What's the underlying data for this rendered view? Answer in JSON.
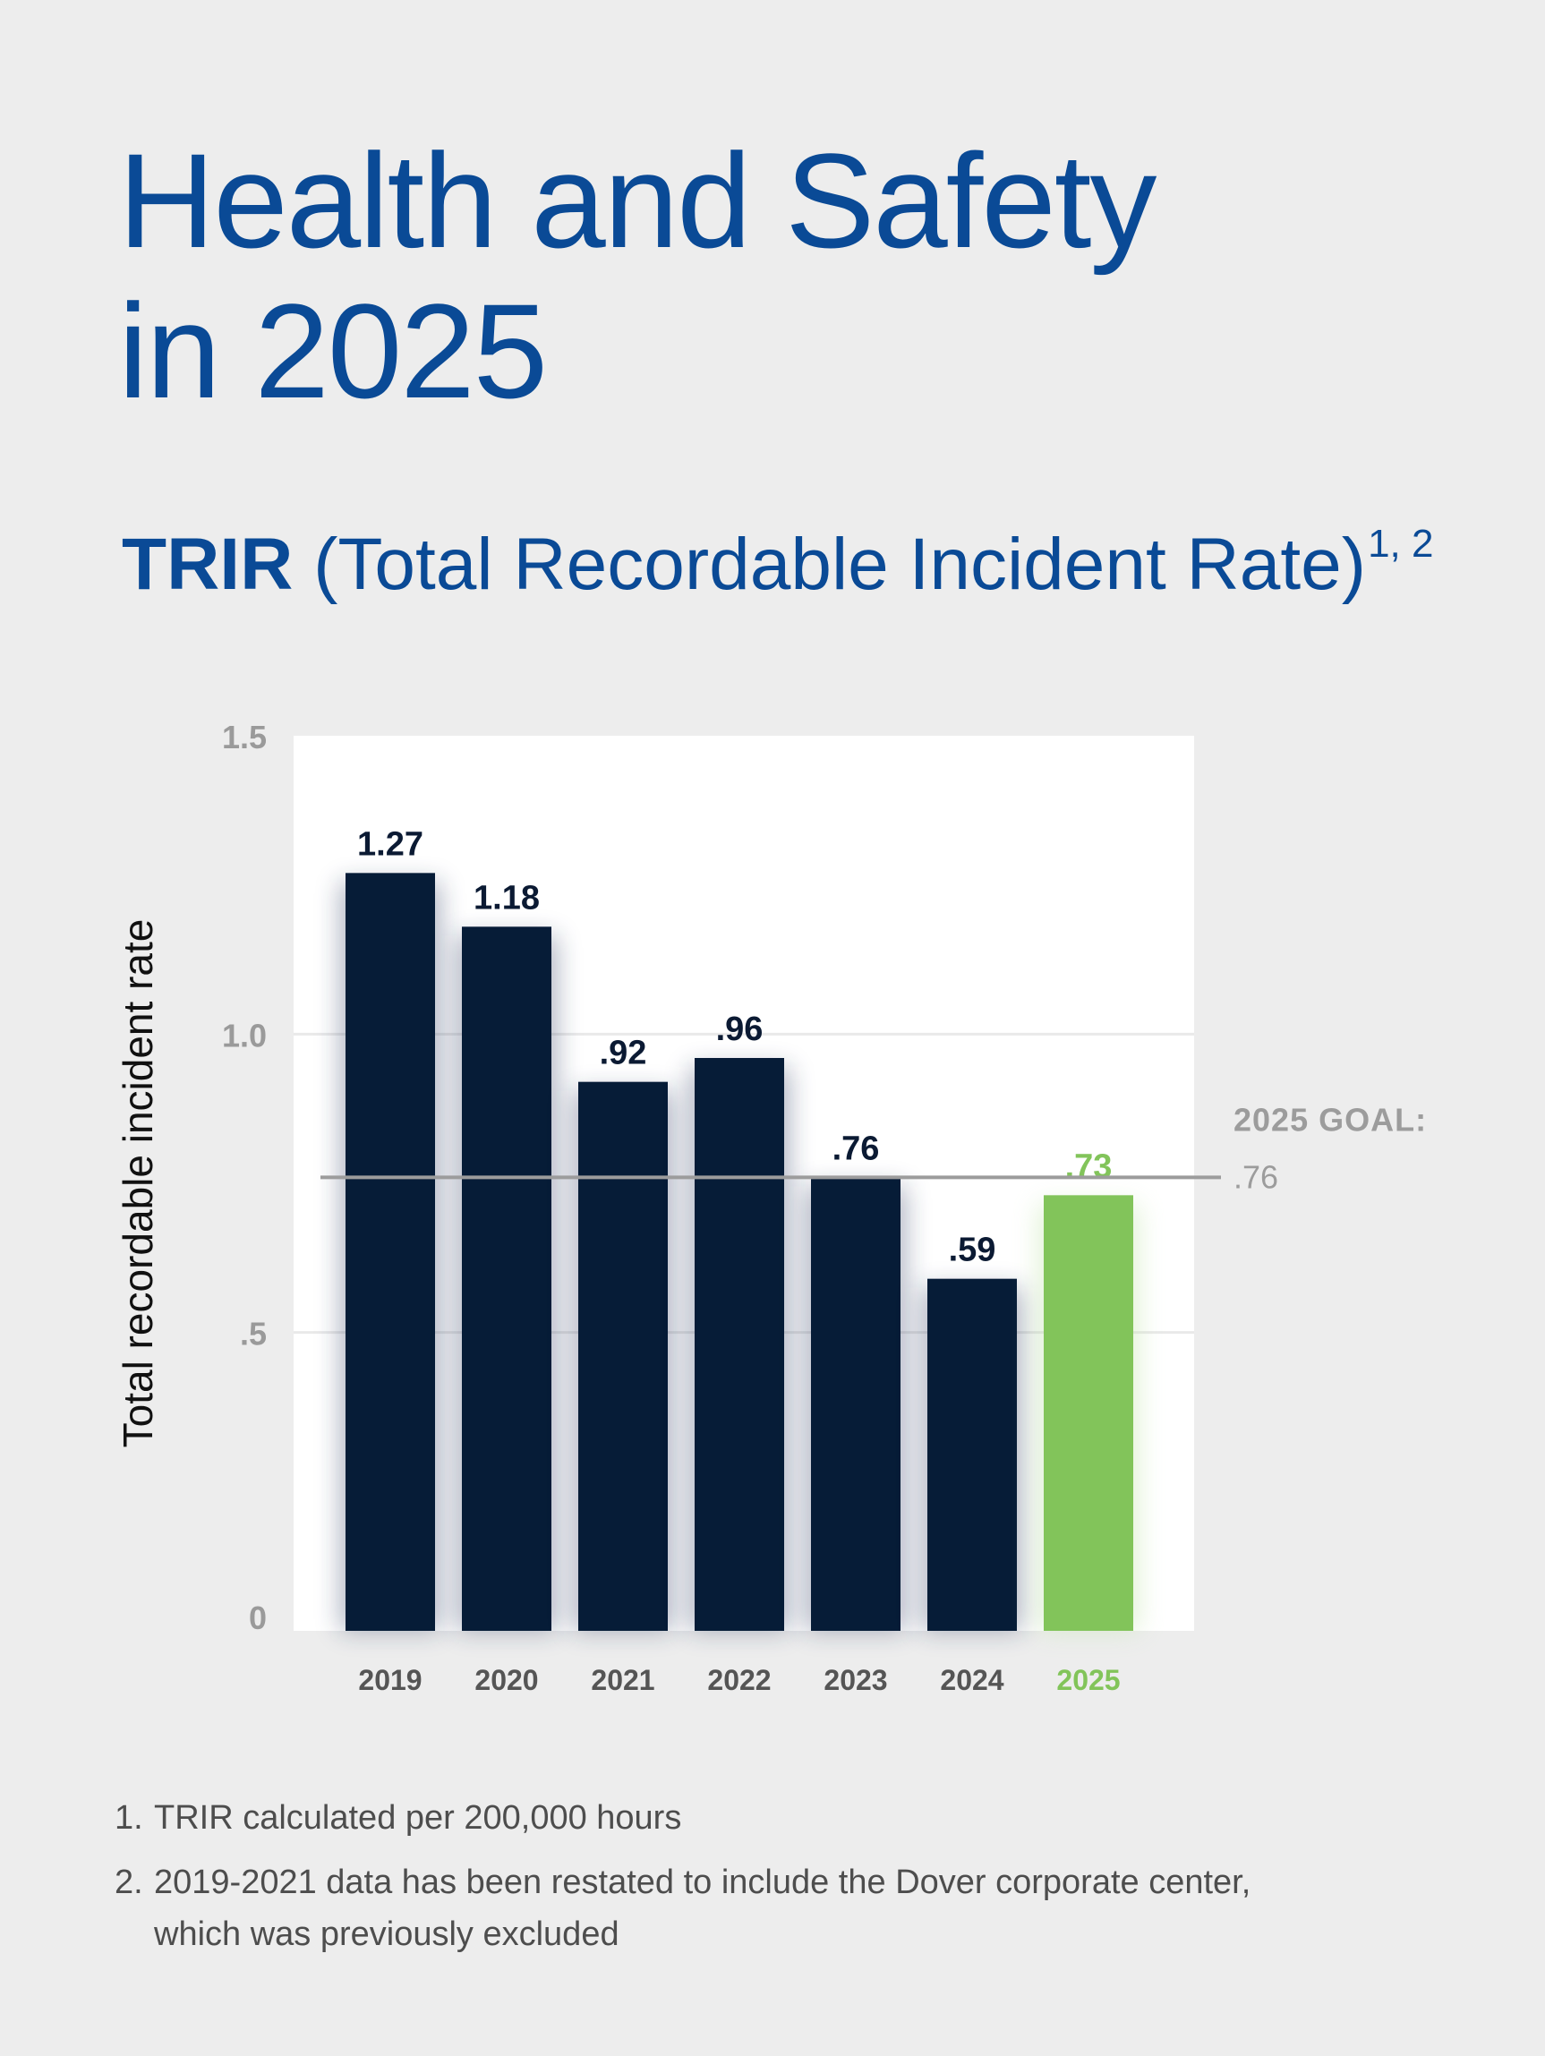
{
  "title": {
    "line1": "Health and Safety",
    "line2": "in 2025"
  },
  "subtitle": {
    "bold": "TRIR",
    "rest": "(Total Recordable Incident Rate)",
    "sup": "1, 2"
  },
  "chart_data": {
    "type": "bar",
    "ylabel": "Total recordable incident rate",
    "xlabel": "",
    "categories": [
      "2019",
      "2020",
      "2021",
      "2022",
      "2023",
      "2024",
      "2025"
    ],
    "values": [
      1.27,
      1.18,
      0.92,
      0.96,
      0.76,
      0.59,
      0.73
    ],
    "value_labels": [
      "1.27",
      "1.18",
      ".92",
      ".96",
      ".76",
      ".59",
      ".73"
    ],
    "ylim": [
      0,
      1.5
    ],
    "yticks": [
      0,
      0.5,
      1.0,
      1.5
    ],
    "ytick_labels": [
      "0",
      ".5",
      "1.0",
      "1.5"
    ],
    "grid": true,
    "bar_color": "#061c37",
    "highlight_category": "2025",
    "highlight_color": "#82c45a",
    "goal": {
      "value": 0.76,
      "label_line1": "2025 GOAL:",
      "label_line2": ".76",
      "color": "#9c9c9c"
    }
  },
  "footnotes": [
    {
      "num": "1.",
      "text": "TRIR calculated per 200,000 hours"
    },
    {
      "num": "2.",
      "text": "2019-2021 data has been restated to include the Dover corporate center, which was previously excluded"
    }
  ]
}
